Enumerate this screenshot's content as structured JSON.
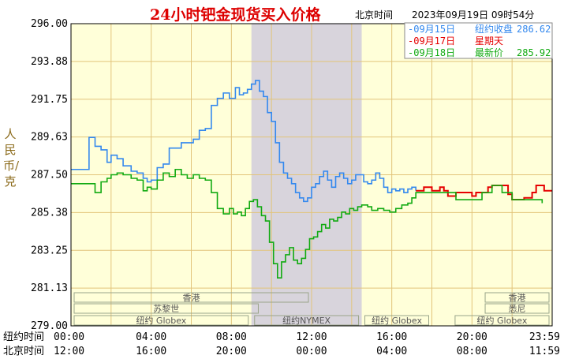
{
  "header": {
    "title": "24小时钯金现货买入价格",
    "beijing_time_label": "北京时间",
    "timestamp": "2023年09月19日 09时54分"
  },
  "colors": {
    "background": "#ffffff",
    "plot_background": "#ffffd9",
    "grid": "#e2c47a",
    "shaded_session": "#d8d4dc",
    "session_box": "#9aa58a",
    "series_0915": "#3388ee",
    "series_0917": "#e60000",
    "series_0918": "#11aa11",
    "axis_label": "#8b6a1a"
  },
  "chart_data": {
    "type": "line",
    "title": "24小时钯金现货买入价格",
    "ylabel": "人民币/克",
    "ylim": [
      279.0,
      296.0
    ],
    "y_ticks": [
      "296.00",
      "293.88",
      "291.75",
      "289.63",
      "287.50",
      "285.38",
      "283.25",
      "281.13",
      "279.00"
    ],
    "x_rows": [
      {
        "label": "纽约时间",
        "ticks": [
          "00:00",
          "04:00",
          "08:00",
          "12:00",
          "16:00",
          "20:00",
          "23:59"
        ]
      },
      {
        "label": "北京时间",
        "ticks": [
          "12:00",
          "16:00",
          "20:00",
          "00:00",
          "04:00",
          "08:00",
          "11:59"
        ]
      }
    ],
    "x_range_hours": [
      0,
      24
    ],
    "grid": true,
    "legend_position": "top-right",
    "legend": [
      {
        "key": "0915",
        "date": "09月15日",
        "text": "纽约收盘",
        "value": "286.62",
        "color": "#3388ee"
      },
      {
        "key": "0917",
        "date": "09月17日",
        "text": "星期天",
        "value": "",
        "color": "#e60000"
      },
      {
        "key": "0918",
        "date": "09月18日",
        "text": "最新价",
        "value": "285.92",
        "color": "#11aa11"
      }
    ],
    "shaded_session": {
      "name": "纽约NYMEX",
      "start_hour": 9.0,
      "end_hour": 14.5
    },
    "sessions": [
      {
        "name": "香港",
        "row": 1,
        "start_hour": 0.0,
        "end_hour": 12.0
      },
      {
        "name": "苏黎世",
        "row": 2,
        "start_hour": 0.0,
        "end_hour": 9.5
      },
      {
        "name": "纽约 Globex",
        "row": 3,
        "start_hour": 0.0,
        "end_hour": 9.0
      },
      {
        "name": "纽约NYMEX",
        "row": 3,
        "start_hour": 9.0,
        "end_hour": 14.5
      },
      {
        "name": "纽约 Globex",
        "row": 3,
        "start_hour": 14.5,
        "end_hour": 18.0
      },
      {
        "name": "香港",
        "row": 1,
        "start_hour": 20.5,
        "end_hour": 24.0
      },
      {
        "name": "悉尼",
        "row": 2,
        "start_hour": 20.5,
        "end_hour": 24.0
      },
      {
        "name": "纽约 Globex",
        "row": 3,
        "start_hour": 19.0,
        "end_hour": 24.0
      }
    ],
    "series": [
      {
        "key": "0915",
        "x": [
          0.0,
          0.8,
          0.9,
          1.2,
          1.5,
          1.8,
          2.0,
          2.3,
          2.6,
          3.0,
          3.3,
          3.6,
          3.8,
          4.0,
          4.3,
          4.6,
          4.9,
          5.2,
          5.5,
          5.8,
          6.1,
          6.4,
          6.7,
          7.0,
          7.3,
          7.6,
          7.9,
          8.2,
          8.4,
          8.6,
          8.8,
          9.0,
          9.2,
          9.4,
          9.6,
          9.8,
          10.0,
          10.2,
          10.4,
          10.6,
          10.8,
          11.0,
          11.2,
          11.4,
          11.6,
          11.8,
          12.0,
          12.2,
          12.4,
          12.6,
          12.8,
          13.0,
          13.2,
          13.4,
          13.6,
          13.8,
          14.0,
          14.2,
          14.4,
          14.6,
          14.8,
          15.0,
          15.2,
          15.4,
          15.6,
          15.8,
          16.0,
          16.2,
          16.4,
          16.6,
          16.8,
          17.0,
          17.2
        ],
        "y": [
          287.8,
          287.8,
          289.6,
          289.1,
          288.9,
          288.2,
          288.6,
          288.4,
          288.0,
          287.7,
          287.6,
          287.3,
          287.1,
          287.2,
          287.9,
          288.1,
          289.0,
          289.0,
          289.3,
          289.3,
          289.5,
          290.0,
          290.1,
          291.4,
          291.8,
          292.1,
          291.8,
          292.4,
          292.0,
          292.1,
          292.3,
          292.6,
          292.8,
          292.2,
          291.9,
          291.0,
          290.5,
          289.3,
          288.2,
          287.6,
          287.3,
          287.0,
          286.5,
          286.2,
          286.0,
          286.2,
          286.8,
          287.0,
          287.4,
          287.7,
          287.2,
          286.8,
          287.4,
          287.6,
          287.3,
          287.0,
          287.2,
          287.5,
          287.5,
          287.1,
          287.0,
          287.2,
          287.6,
          287.3,
          286.8,
          286.5,
          286.7,
          286.6,
          286.7,
          286.5,
          286.7,
          286.8,
          286.6
        ]
      },
      {
        "key": "0917",
        "x": [
          17.2,
          17.4,
          17.6,
          17.8,
          18.0,
          18.2,
          18.4,
          18.6,
          18.8,
          19.0,
          19.2,
          19.4,
          19.6,
          19.8,
          20.0,
          20.2,
          20.4,
          20.6,
          20.8,
          21.0,
          21.2,
          21.4,
          21.6,
          21.8,
          22.0,
          22.2,
          22.4,
          22.6,
          22.8,
          23.0,
          23.2,
          23.4,
          23.6,
          23.8,
          24.0
        ],
        "y": [
          286.6,
          286.6,
          286.8,
          286.8,
          286.6,
          286.6,
          286.8,
          286.6,
          286.3,
          286.3,
          286.5,
          286.5,
          286.5,
          286.5,
          286.3,
          286.5,
          286.5,
          286.5,
          286.8,
          286.9,
          286.9,
          286.9,
          286.9,
          286.4,
          286.1,
          286.1,
          286.1,
          286.2,
          286.2,
          286.5,
          286.9,
          286.9,
          286.6,
          286.6,
          286.6
        ]
      },
      {
        "key": "0918",
        "x": [
          0.0,
          1.0,
          1.2,
          1.5,
          1.8,
          2.0,
          2.3,
          2.6,
          3.0,
          3.3,
          3.6,
          3.8,
          4.0,
          4.3,
          4.6,
          4.9,
          5.2,
          5.5,
          5.8,
          6.1,
          6.4,
          6.7,
          7.0,
          7.3,
          7.6,
          7.9,
          8.1,
          8.3,
          8.5,
          8.7,
          8.9,
          9.1,
          9.3,
          9.5,
          9.7,
          9.9,
          10.1,
          10.3,
          10.5,
          10.7,
          10.9,
          11.1,
          11.3,
          11.5,
          11.7,
          11.9,
          12.1,
          12.3,
          12.5,
          12.7,
          12.9,
          13.1,
          13.3,
          13.5,
          13.7,
          13.9,
          14.1,
          14.3,
          14.5,
          14.8,
          15.0,
          15.3,
          15.6,
          15.9,
          16.2,
          16.5,
          16.8,
          17.0,
          17.2,
          17.5,
          18.0,
          18.5,
          19.0,
          19.2,
          19.5,
          20.0,
          20.5,
          21.0,
          21.5,
          21.8,
          22.0,
          22.5,
          23.0,
          23.5
        ],
        "y": [
          287.0,
          287.0,
          286.5,
          287.1,
          287.3,
          287.5,
          287.6,
          287.5,
          287.3,
          287.2,
          286.6,
          286.8,
          286.7,
          287.2,
          287.6,
          287.4,
          287.8,
          287.5,
          287.3,
          287.5,
          287.3,
          287.2,
          286.5,
          285.6,
          285.3,
          285.6,
          285.3,
          285.4,
          285.2,
          285.6,
          286.0,
          286.1,
          285.7,
          285.2,
          284.9,
          283.7,
          282.5,
          281.7,
          282.6,
          283.0,
          283.4,
          282.7,
          282.5,
          282.8,
          283.3,
          283.9,
          284.0,
          284.3,
          284.7,
          284.5,
          285.0,
          284.9,
          285.1,
          285.4,
          285.3,
          285.6,
          285.5,
          285.7,
          285.8,
          285.7,
          285.5,
          285.6,
          285.5,
          285.4,
          285.6,
          285.8,
          285.9,
          286.2,
          286.5,
          286.5,
          286.5,
          286.5,
          286.5,
          286.1,
          286.1,
          286.1,
          286.5,
          286.9,
          286.5,
          286.5,
          286.1,
          286.1,
          286.1,
          285.9
        ]
      }
    ]
  }
}
